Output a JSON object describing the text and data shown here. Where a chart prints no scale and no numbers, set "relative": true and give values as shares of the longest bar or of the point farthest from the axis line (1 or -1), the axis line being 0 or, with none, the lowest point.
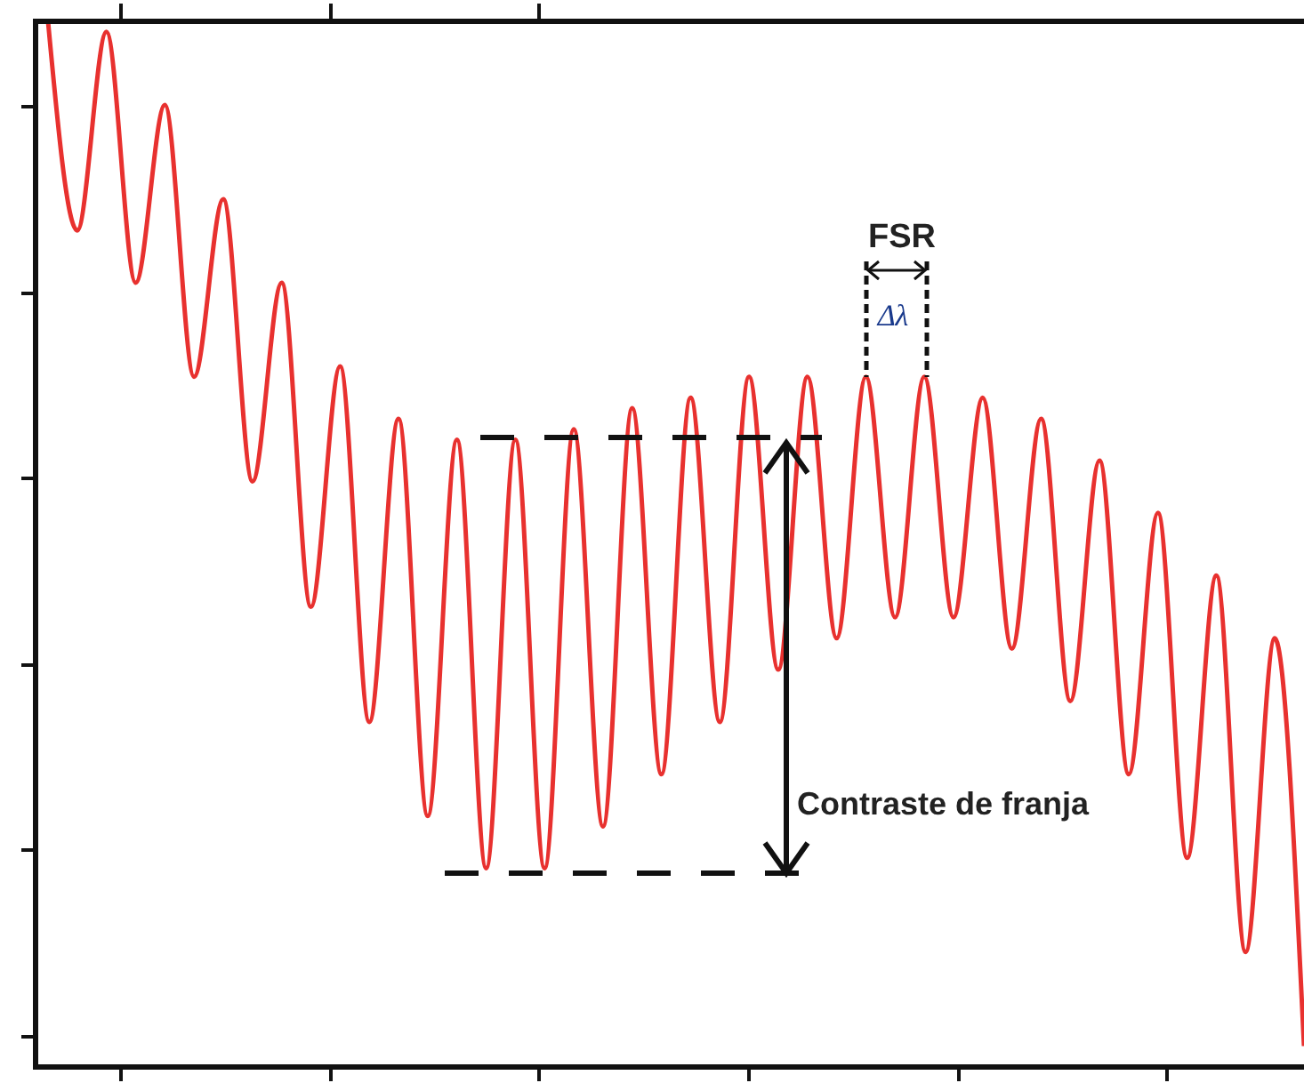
{
  "chart_data": {
    "type": "line",
    "relative": true,
    "categories": [
      null,
      null,
      null,
      null,
      null,
      null,
      null,
      null,
      null,
      null,
      null,
      null,
      null,
      null,
      null,
      null,
      null,
      null,
      null,
      null,
      null,
      null,
      null,
      null,
      null,
      null,
      null,
      null,
      null,
      null,
      null,
      null,
      null,
      null,
      null,
      null,
      null,
      null,
      null,
      null,
      null,
      null,
      null,
      null
    ],
    "series": [
      {
        "color": "#e8312f",
        "values": [
          1.0,
          0.8,
          0.99,
          0.75,
          0.92,
          0.66,
          0.83,
          0.56,
          0.75,
          0.44,
          0.67,
          0.33,
          0.62,
          0.24,
          0.6,
          0.19,
          0.6,
          0.19,
          0.61,
          0.23,
          0.63,
          0.28,
          0.64,
          0.33,
          0.66,
          0.38,
          0.66,
          0.41,
          0.66,
          0.43,
          0.66,
          0.43,
          0.64,
          0.4,
          0.62,
          0.35,
          0.58,
          0.28,
          0.53,
          0.2,
          0.47,
          0.11,
          0.41,
          0.02
        ]
      }
    ],
    "annotations": [
      "FSR",
      "Δλ",
      "Contraste de franja"
    ]
  }
}
